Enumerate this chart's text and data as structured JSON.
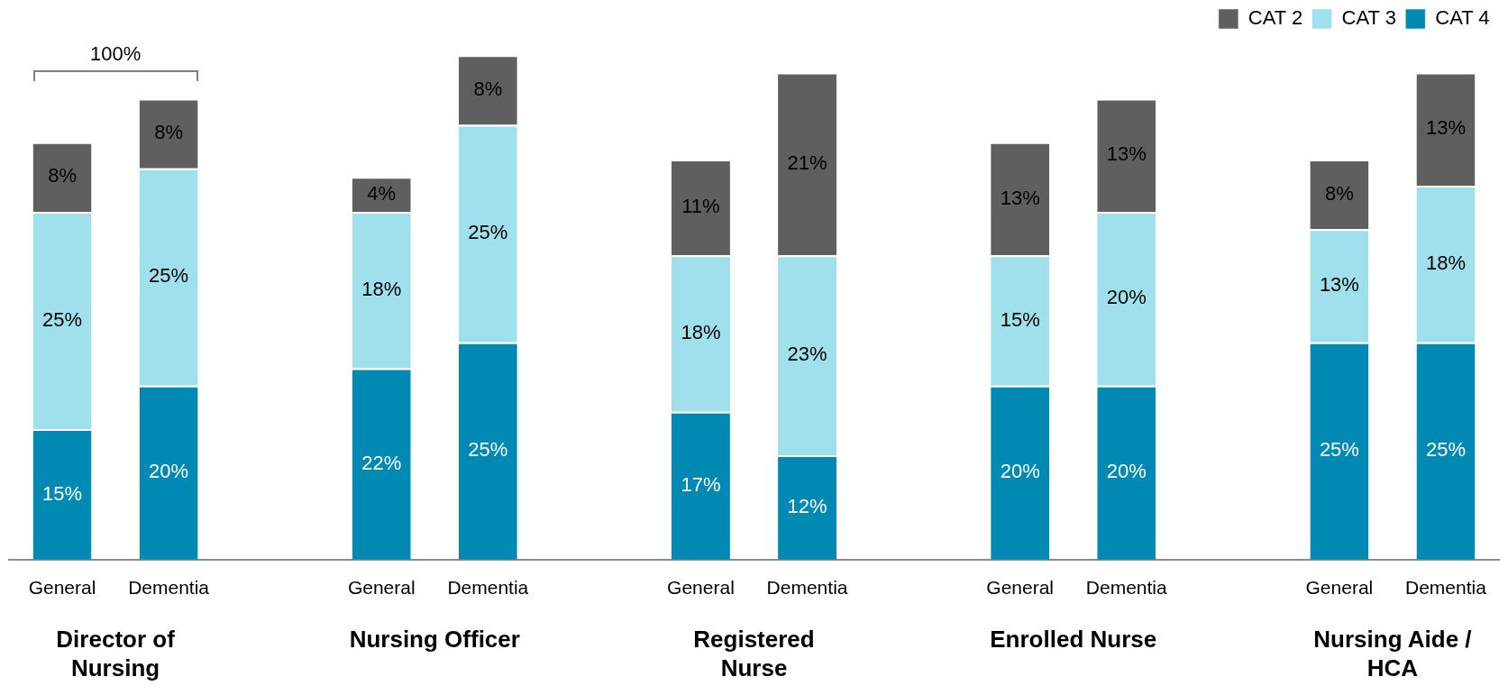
{
  "chart_data": {
    "type": "bar",
    "stacked": true,
    "categories": [
      "General",
      "Dementia",
      null,
      "General",
      "Dementia",
      null,
      "General",
      "Dementia",
      null,
      "General",
      "Dementia",
      null,
      "General",
      "Dementia"
    ],
    "series": [
      {
        "name": "CAT 4",
        "color": "#008ab3",
        "values": [
          15,
          20,
          null,
          22,
          25,
          null,
          17,
          12,
          null,
          20,
          20,
          null,
          25,
          25
        ],
        "value_labels": [
          "15%",
          "20%",
          null,
          "22%",
          "25%",
          null,
          "17%",
          "12%",
          null,
          "20%",
          "20%",
          null,
          "25%",
          "25%"
        ]
      },
      {
        "name": "CAT 3",
        "color": "#9fe0ec",
        "values": [
          25,
          25,
          null,
          18,
          25,
          null,
          18,
          23,
          null,
          15,
          20,
          null,
          13,
          18
        ],
        "value_labels": [
          "25%",
          "25%",
          null,
          "18%",
          "25%",
          null,
          "18%",
          "23%",
          null,
          "15%",
          "20%",
          null,
          "13%",
          "18%"
        ]
      },
      {
        "name": "CAT 2",
        "color": "#5f5f5f",
        "values": [
          8,
          8,
          null,
          4,
          8,
          null,
          11,
          21,
          null,
          13,
          13,
          null,
          8,
          13
        ],
        "value_labels": [
          "8%",
          "8%",
          null,
          "4%",
          "8%",
          null,
          "11%",
          "21%",
          null,
          "13%",
          "13%",
          null,
          "8%",
          "13%"
        ]
      }
    ],
    "annotations": [
      "Director of Nursing",
      "Nursing Officer",
      "Registered Nurse",
      "Enrolled Nurse",
      "Nursing Aide / HCA",
      "100%"
    ],
    "legend": "top right",
    "grid": false,
    "tick_labels": "x"
  }
}
